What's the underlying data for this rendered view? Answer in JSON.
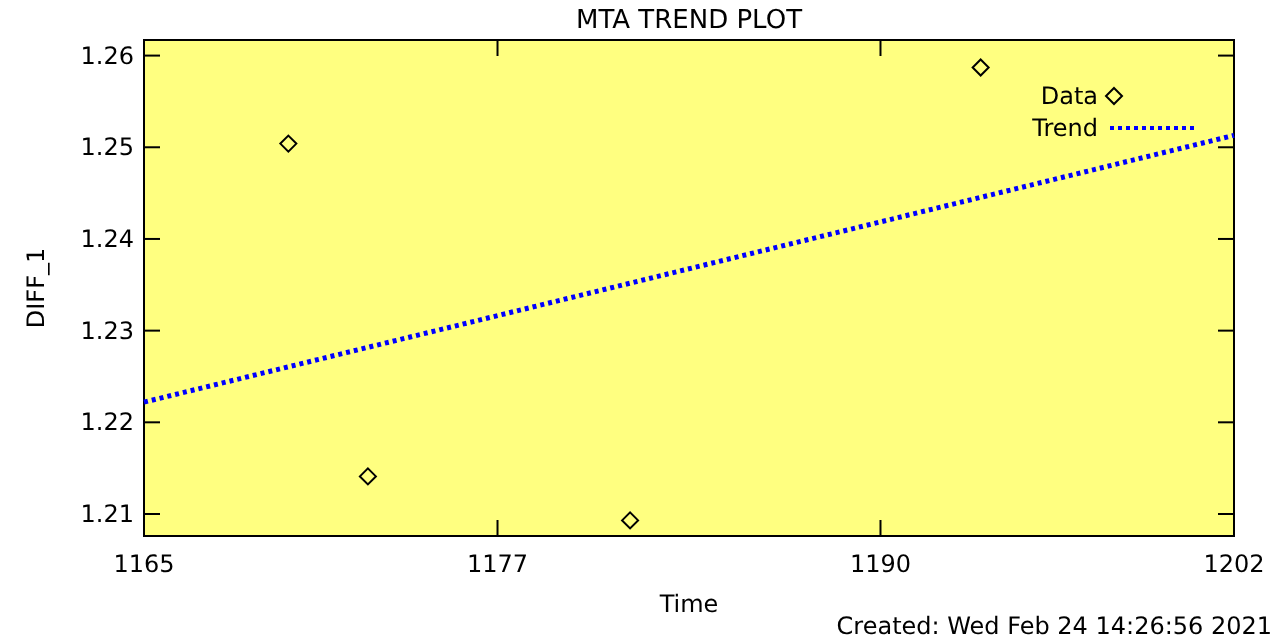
{
  "chart_data": {
    "type": "scatter",
    "title": "MTA TREND PLOT",
    "xlabel": "Time",
    "ylabel": "DIFF_1",
    "xlim": [
      1165,
      1202
    ],
    "xticks": [
      1165,
      1177,
      1190,
      1202
    ],
    "ylim": [
      1.2076,
      1.2617
    ],
    "yticks": [
      1.21,
      1.22,
      1.23,
      1.24,
      1.25,
      1.26
    ],
    "legend": "top right",
    "grid": false,
    "series": [
      {
        "name": "Data",
        "marker": "diamond",
        "color": "#000000",
        "x": [
          1169.9,
          1172.6,
          1181.5,
          1193.4
        ],
        "values": [
          1.2504,
          1.2141,
          1.2093,
          1.2587
        ]
      },
      {
        "name": "Trend",
        "type": "line",
        "line_style": "dotted",
        "marker": "none",
        "color": "#0000ff",
        "x": [
          1165,
          1202
        ],
        "values": [
          1.2222,
          1.2513
        ]
      }
    ],
    "annotations": [
      "Created: Wed Feb 24 14:26:56 2021"
    ]
  }
}
